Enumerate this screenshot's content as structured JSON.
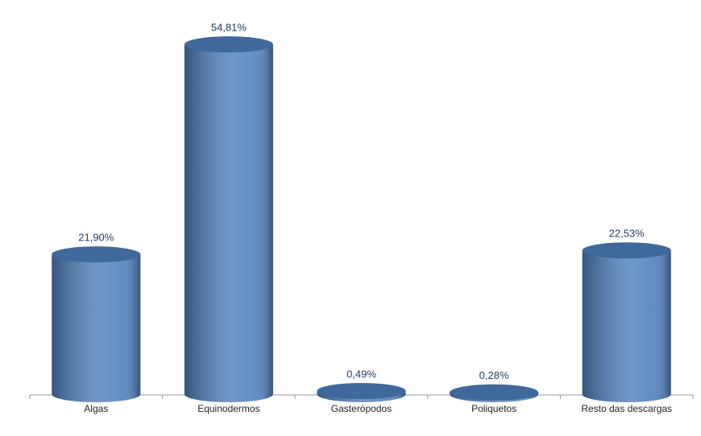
{
  "chart_data": {
    "type": "cylinder",
    "categories": [
      "Algas",
      "Equinodermos",
      "Gasterópodos",
      "Poliquetos",
      "Resto das descargas"
    ],
    "values": [
      21.9,
      54.81,
      0.49,
      0.28,
      22.53
    ],
    "value_labels": [
      "21,90%",
      "54,81%",
      "0,49%",
      "0,28%",
      "22,53%"
    ],
    "color": "#4f81bd",
    "ylim": [
      0,
      60
    ]
  }
}
